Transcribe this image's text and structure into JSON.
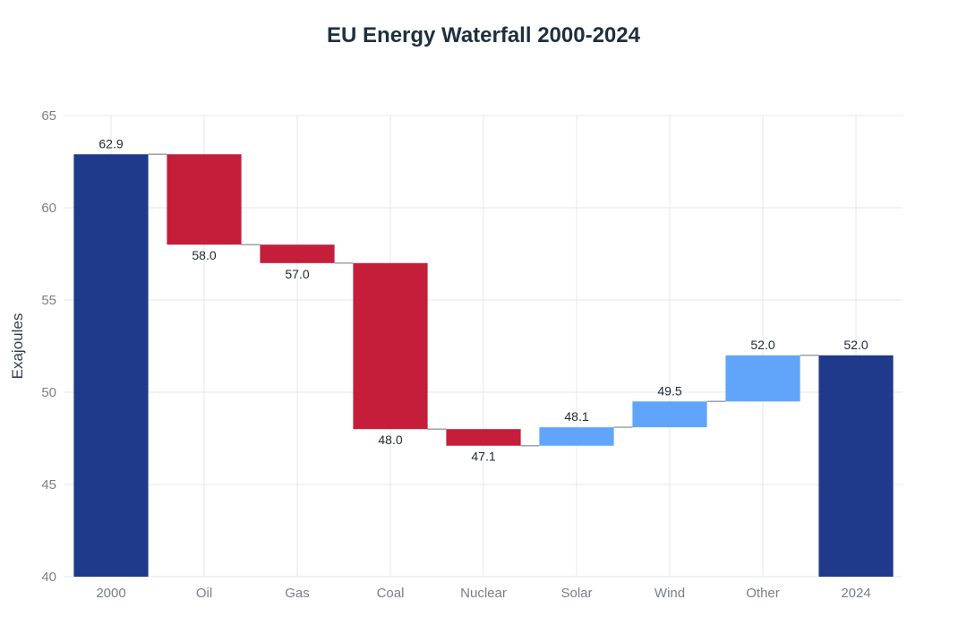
{
  "chart_data": {
    "type": "waterfall",
    "title": "EU Energy Waterfall 2000-2024",
    "xlabel": "",
    "ylabel": "Exajoules",
    "ylim": [
      40,
      65
    ],
    "yticks": [
      40,
      45,
      50,
      55,
      60,
      65
    ],
    "categories": [
      "2000",
      "Oil",
      "Gas",
      "Coal",
      "Nuclear",
      "Solar",
      "Wind",
      "Other",
      "2024"
    ],
    "measures": [
      "total",
      "relative",
      "relative",
      "relative",
      "relative",
      "relative",
      "relative",
      "relative",
      "total"
    ],
    "values": [
      62.9,
      -4.9,
      -1.0,
      -9.0,
      -0.9,
      1.0,
      1.4,
      2.5,
      52.0
    ],
    "labels": [
      "62.9",
      "58.0",
      "57.0",
      "48.0",
      "47.1",
      "48.1",
      "49.5",
      "52.0",
      "52.0"
    ],
    "grid": true,
    "colors": {
      "total": "#1f3a8a",
      "decrease": "#c41e3a",
      "increase": "#60a5fa",
      "connector": "#9aa3ad",
      "grid": "#e4e7eb"
    }
  }
}
